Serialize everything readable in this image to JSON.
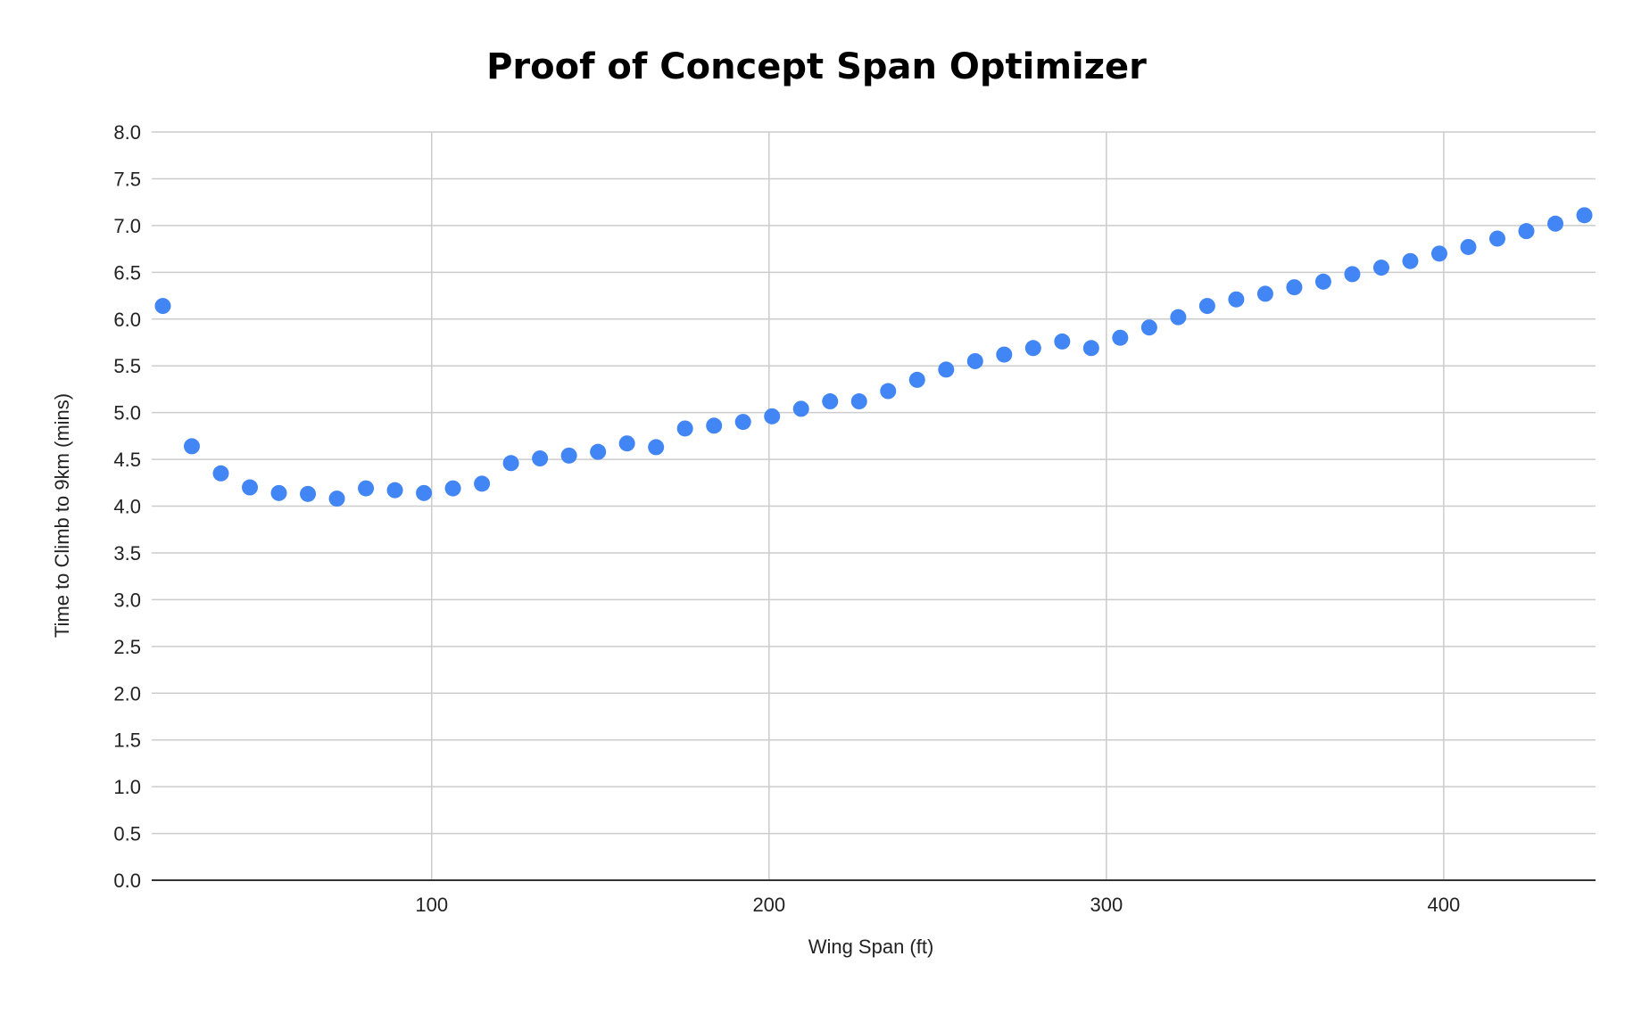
{
  "chart_data": {
    "type": "scatter",
    "title": "Proof of Concept Span Optimizer",
    "xlabel": "Wing Span (ft)",
    "ylabel": "Time to Climb to 9km (mins)",
    "xlim": [
      17,
      445
    ],
    "ylim": [
      0,
      8
    ],
    "xticks": [
      100,
      200,
      300,
      400
    ],
    "yticks": [
      "0.0",
      "0.5",
      "1.0",
      "1.5",
      "2.0",
      "2.5",
      "3.0",
      "3.5",
      "4.0",
      "4.5",
      "5.0",
      "5.5",
      "6.0",
      "6.5",
      "7.0",
      "7.5",
      "8.0"
    ],
    "grid": true,
    "legend": "none",
    "marker_color": "#4285F4",
    "series": [
      {
        "x": [
          20.3,
          28.9,
          37.5,
          46.1,
          54.7,
          63.3,
          71.9,
          80.5,
          89.1,
          97.7,
          106.3,
          114.9,
          123.5,
          132.1,
          140.7,
          149.3,
          157.9,
          166.5,
          175.1,
          183.7,
          192.3,
          200.9,
          209.5,
          218.1,
          226.7,
          235.3,
          243.9,
          252.5,
          261.1,
          269.7,
          278.3,
          286.9,
          295.5,
          304.1,
          312.7,
          321.3,
          329.9,
          338.5,
          347.1,
          355.7,
          364.3,
          372.9,
          381.5,
          390.1,
          398.7,
          407.3,
          415.9,
          424.5,
          433.1,
          441.7
        ],
        "y": [
          6.14,
          4.64,
          4.35,
          4.2,
          4.14,
          4.13,
          4.08,
          4.19,
          4.17,
          4.14,
          4.19,
          4.24,
          4.46,
          4.51,
          4.54,
          4.58,
          4.67,
          4.63,
          4.83,
          4.86,
          4.9,
          4.96,
          5.04,
          5.12,
          5.12,
          5.23,
          5.35,
          5.46,
          5.55,
          5.62,
          5.69,
          5.76,
          5.69,
          5.8,
          5.91,
          6.02,
          6.14,
          6.21,
          6.27,
          6.34,
          6.4,
          6.48,
          6.55,
          6.62,
          6.7,
          6.77,
          6.86,
          6.94,
          7.02,
          7.11
        ]
      }
    ]
  }
}
